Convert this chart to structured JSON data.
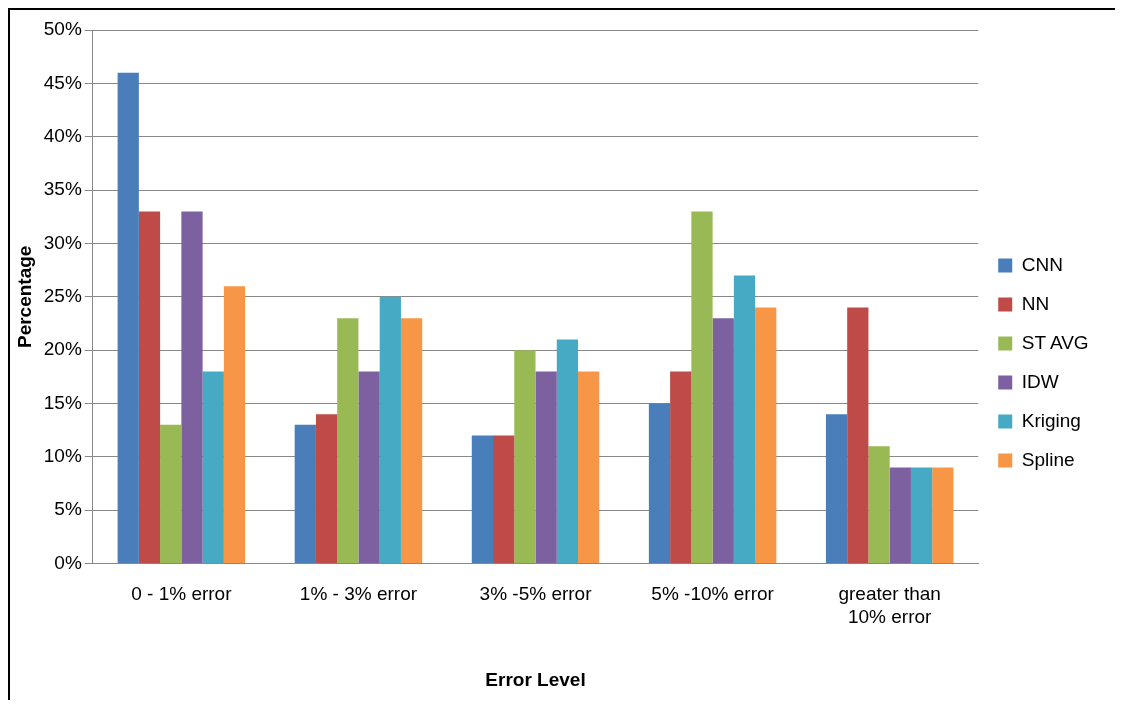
{
  "chart_data": {
    "type": "bar",
    "categories": [
      "0 - 1% error",
      "1% - 3% error",
      "3% -5% error",
      "5% -10% error",
      "greater than 10% error"
    ],
    "series": [
      {
        "name": "CNN",
        "color": "#4a7ebb",
        "values": [
          46,
          13,
          12,
          15,
          14
        ]
      },
      {
        "name": "NN",
        "color": "#be4b48",
        "values": [
          33,
          14,
          12,
          18,
          24
        ]
      },
      {
        "name": "ST AVG",
        "color": "#98b954",
        "values": [
          13,
          23,
          20,
          33,
          11
        ]
      },
      {
        "name": "IDW",
        "color": "#7d60a0",
        "values": [
          33,
          18,
          18,
          23,
          9
        ]
      },
      {
        "name": "Kriging",
        "color": "#46aac5",
        "values": [
          18,
          25,
          21,
          27,
          9
        ]
      },
      {
        "name": "Spline",
        "color": "#f79646",
        "values": [
          26,
          23,
          18,
          24,
          9
        ]
      }
    ],
    "xlabel": "Error Level",
    "ylabel": "Percentage",
    "ylim": [
      0,
      50
    ],
    "yticks": [
      {
        "value": 0,
        "label": "0%"
      },
      {
        "value": 5,
        "label": "5%"
      },
      {
        "value": 10,
        "label": "10%"
      },
      {
        "value": 15,
        "label": "15%"
      },
      {
        "value": 20,
        "label": "20%"
      },
      {
        "value": 25,
        "label": "25%"
      },
      {
        "value": 30,
        "label": "30%"
      },
      {
        "value": 35,
        "label": "35%"
      },
      {
        "value": 40,
        "label": "40%"
      },
      {
        "value": 45,
        "label": "45%"
      },
      {
        "value": 50,
        "label": "50%"
      }
    ],
    "grid": "y",
    "legend": "right"
  }
}
